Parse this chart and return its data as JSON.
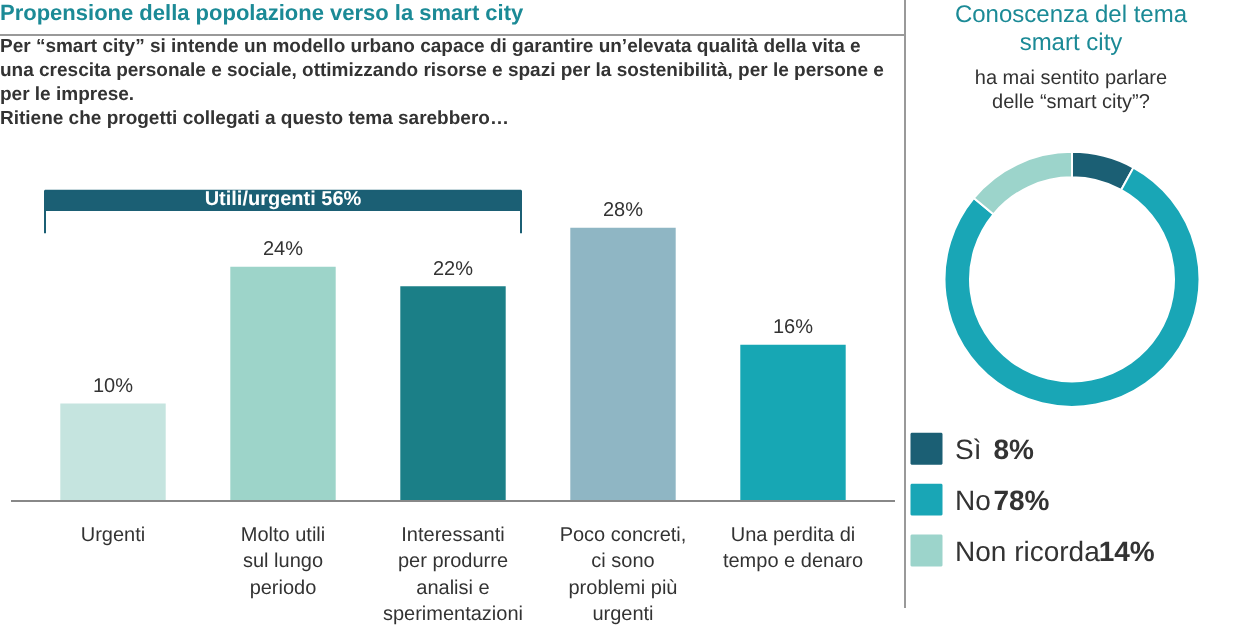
{
  "chart_data": [
    {
      "type": "bar",
      "title": "Propensione della popolazione verso la smart city",
      "subtitle": "Per “smart city” si intende un modello urbano capace di garantire un’elevata qualità della vita e una crescita personale e sociale, ottimizzando risorse e spazi per la sostenibilità, per le persone e per le imprese.\nRitiene che progetti collegati a questo tema sarebbero…",
      "categories": [
        "Urgenti",
        "Molto utili sul lungo periodo",
        "Interessanti per produrre analisi e sperimentazioni",
        "Poco concreti, ci sono problemi più urgenti",
        "Una perdita di tempo e denaro"
      ],
      "values": [
        10,
        24,
        22,
        28,
        16
      ],
      "value_labels": [
        "10%",
        "24%",
        "22%",
        "28%",
        "16%"
      ],
      "colors": [
        "#c5e4df",
        "#9dd4c9",
        "#1b7f87",
        "#8fb6c4",
        "#17a7b4"
      ],
      "annotations": [
        "Utili/urgenti 56%"
      ]
    },
    {
      "type": "donut",
      "title": "Conoscenza del tema smart city",
      "subtitle": "ha mai sentito parlare delle “smart city”?",
      "categories": [
        "Sì",
        "No",
        "Non ricorda"
      ],
      "values": [
        8,
        78,
        14
      ],
      "value_labels": [
        "8%",
        "78%",
        "14%"
      ],
      "colors": [
        "#1b5f74",
        "#19a6b6",
        "#9cd4cb"
      ],
      "legend": "bottom"
    }
  ]
}
